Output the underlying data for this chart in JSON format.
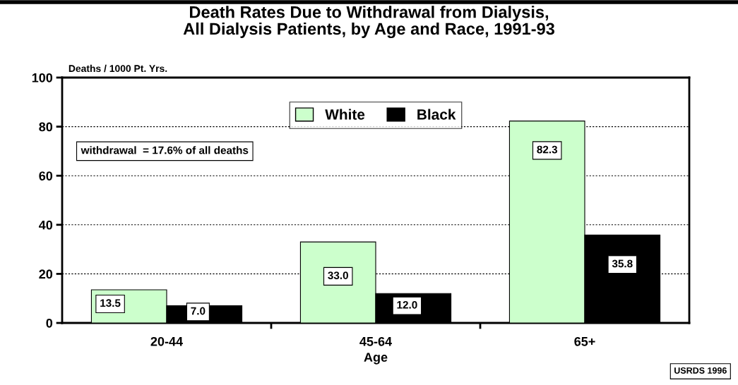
{
  "chart_data": {
    "type": "bar",
    "title": "Death Rates Due to Withdrawal from Dialysis,\nAll Dialysis Patients, by Age and Race, 1991-93",
    "xlabel": "Age",
    "ylabel": "Deaths / 1000 Pt. Yrs.",
    "categories": [
      "20-44",
      "45-64",
      "65+"
    ],
    "series": [
      {
        "name": "White",
        "color": "#ccffcc",
        "values": [
          13.5,
          33.0,
          82.3
        ],
        "value_labels": [
          "13.5",
          "33.0",
          "82.3"
        ]
      },
      {
        "name": "Black",
        "color": "#000000",
        "values": [
          7.0,
          12.0,
          35.8
        ],
        "value_labels": [
          "7.0",
          "12.0",
          "35.8"
        ]
      }
    ],
    "ylim": [
      0,
      100
    ],
    "yticks": [
      0,
      20,
      40,
      60,
      80,
      100
    ],
    "grid": "y",
    "legend": "top",
    "annotations": [
      "withdrawal  = 17.6% of all deaths",
      "USRDS 1996"
    ]
  }
}
